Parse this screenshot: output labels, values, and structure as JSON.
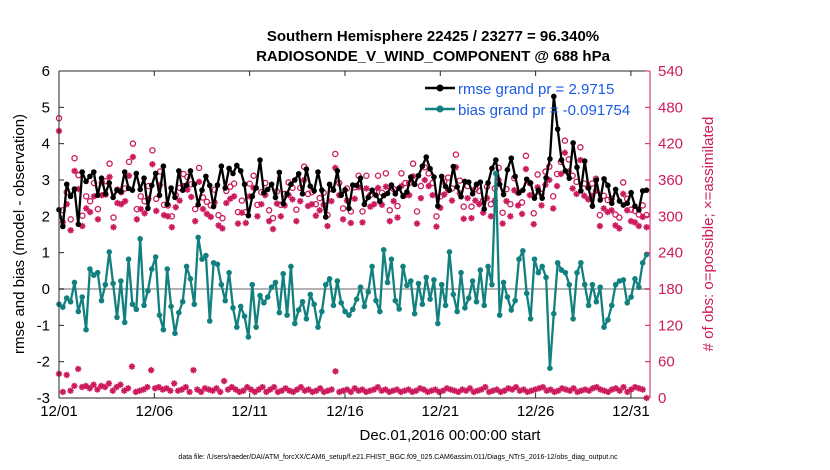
{
  "chart_data": {
    "type": "line",
    "title": "Southern Hemisphere 22425 / 23277 = 96.340%",
    "subtitle": "RADIOSONDE_V_WIND_COMPONENT @ 688 hPa",
    "xlabel": "Dec.01,2016 00:00:00 start",
    "ylabel_left": "rmse and bias (model - observation)",
    "ylabel_right": "# of obs: o=possible; ×=assimilated",
    "xlim": [
      1,
      32
    ],
    "ylim_left": [
      -3,
      6
    ],
    "ylim_right": [
      0,
      540
    ],
    "x_tick_values": [
      1,
      6,
      11,
      16,
      21,
      26,
      31
    ],
    "x_tick_labels": [
      "12/01",
      "12/06",
      "12/11",
      "12/16",
      "12/21",
      "12/26",
      "12/31"
    ],
    "y_left_ticks": [
      "-3",
      "-2",
      "-1",
      "0",
      "1",
      "2",
      "3",
      "4",
      "5",
      "6"
    ],
    "y_right_ticks": [
      "0",
      "60",
      "120",
      "180",
      "240",
      "300",
      "360",
      "420",
      "480",
      "540"
    ],
    "colors": {
      "rmse": "#000000",
      "bias": "#138080",
      "obs": "#cc1a5e",
      "zero_line": "#b3b3b3",
      "legend_text": "#1a5ce6"
    },
    "series": [
      {
        "name": "rmse",
        "legend": "rmse grand pr = 2.9715",
        "color": "#000000",
        "marker": "filled-circle",
        "values": [
          2.18,
          1.72,
          2.88,
          2.55,
          2.75,
          1.78,
          3.22,
          2.96,
          3.1,
          3.22,
          2.58,
          3.05,
          2.62,
          2.92,
          2.52,
          2.72,
          2.68,
          3.22,
          2.77,
          2.72,
          3.18,
          2.74,
          3.05,
          2.22,
          2.85,
          3.18,
          2.58,
          3.38,
          2.33,
          2.78,
          2.52,
          3.25,
          2.72,
          2.86,
          3.25,
          2.88,
          2.32,
          2.72,
          3.1,
          2.85,
          2.27,
          2.86,
          3.38,
          2.78,
          3.32,
          3.18,
          3.4,
          3.25,
          2.88,
          2.02,
          2.55,
          2.78,
          3.55,
          2.65,
          2.74,
          2.88,
          2.52,
          3.21,
          2.35,
          2.62,
          2.88,
          3.0,
          3.17,
          2.62,
          3.3,
          2.83,
          2.7,
          3.22,
          2.72,
          1.98,
          2.88,
          2.72,
          3.25,
          2.58,
          2.73,
          2.22,
          2.86,
          2.85,
          3.05,
          2.33,
          2.52,
          2.72,
          2.58,
          2.41,
          2.57,
          2.63,
          2.86,
          2.62,
          2.78,
          2.55,
          2.67,
          3.08,
          2.88,
          3.12,
          3.38,
          3.63,
          3.31,
          3.08,
          2.28,
          3.1,
          2.82,
          2.72,
          3.37,
          2.81,
          2.54,
          2.96,
          2.94,
          2.62,
          2.88,
          2.94,
          2.2,
          2.92,
          3.32,
          3.55,
          2.88,
          2.6,
          3.28,
          3.6,
          3.1,
          2.65,
          2.72,
          3.02,
          2.92,
          2.5,
          2.72,
          2.5,
          3.06,
          3.58,
          5.3,
          4.4,
          3.55,
          3.25,
          3.05,
          4.02,
          3.35,
          2.7,
          3.52,
          2.78,
          2.28,
          3.0,
          2.45,
          3.03,
          2.85,
          2.36,
          2.74,
          2.42,
          2.31,
          2.36,
          2.65,
          2.28,
          2.18,
          2.7,
          2.72
        ],
        "missing_from_day": 28.5,
        "missing_gap": [
          0,
          0
        ]
      },
      {
        "name": "bias",
        "legend": "bias grand pr = -0.091754",
        "color": "#138080",
        "marker": "filled-circle",
        "values": [
          -0.42,
          -0.5,
          -0.25,
          -0.35,
          0.18,
          -0.62,
          -0.22,
          -1.12,
          0.55,
          0.38,
          0.45,
          -0.32,
          0.12,
          1.02,
          0.15,
          -0.78,
          0.22,
          -0.92,
          0.82,
          -0.42,
          -0.56,
          1.38,
          -0.45,
          -0.05,
          0.55,
          0.88,
          -0.72,
          -1.12,
          0.55,
          -0.48,
          -1.22,
          -0.65,
          -0.35,
          0.62,
          0.28,
          -0.42,
          1.42,
          0.82,
          0.92,
          -0.88,
          0.72,
          0.68,
          0.12,
          -0.32,
          0.45,
          -0.52,
          -1.05,
          -0.48,
          -0.75,
          -1.32,
          0.12,
          -1.05,
          -0.18,
          -0.38,
          -0.22,
          0.05,
          0.18,
          -0.65,
          0.42,
          -0.72,
          0.62,
          -0.95,
          -0.58,
          -0.35,
          -0.82,
          -0.15,
          -0.42,
          -1.05,
          -0.62,
          0.12,
          0.28,
          -0.45,
          0.22,
          -0.38,
          -0.62,
          -0.72,
          -0.56,
          -0.28,
          0.05,
          -0.48,
          -0.08,
          0.62,
          -0.32,
          -0.62,
          1.08,
          0.18,
          0.82,
          -0.32,
          -0.55,
          0.62,
          0.1,
          0.22,
          -0.68,
          0.15,
          -0.42,
          0.32,
          -0.28,
          0.25,
          -0.95,
          0.12,
          -0.45,
          1.02,
          -0.15,
          -0.62,
          0.45,
          -0.52,
          -0.25,
          0.22,
          -0.35,
          0.52,
          -0.45,
          0.62,
          0.12,
          3.18,
          -0.72,
          0.18,
          -0.22,
          -0.58,
          -0.32,
          0.82,
          1.05,
          -0.12,
          -0.82,
          0.82,
          0.45,
          0.62,
          0.32,
          -2.18,
          -0.68,
          0.72,
          0.52,
          0.45,
          0.12,
          -0.82,
          0.45,
          0.72,
          0.12,
          -0.45,
          0.12,
          -0.35,
          0.05,
          -1.05,
          -0.85,
          -0.45,
          0.12,
          0.22,
          0.25,
          -0.38,
          -0.22,
          0.28,
          0.05,
          0.72,
          0.95
        ]
      },
      {
        "name": "obs_possible",
        "legend": "o=possible",
        "color": "#cc1a5e",
        "marker": "open-circle",
        "axis": "right",
        "values": [
          462,
          310,
          340,
          295,
          396,
          368,
          301,
          333,
          325,
          355,
          312,
          356,
          358,
          387,
          298,
          344,
          340,
          346,
          390,
          420,
          312,
          333,
          325,
          350,
          409,
          329,
          374,
          319,
          318,
          300,
          335,
          347,
          370,
          365,
          353,
          312,
          380,
          331,
          324,
          318,
          344,
          302,
          297,
          342,
          349,
          354,
          307,
          326,
          307,
          354,
          367,
          319,
          340,
          355,
          310,
          297,
          341,
          319,
          337,
          356,
          347,
          311,
          347,
          382,
          337,
          340,
          320,
          330,
          339,
          302,
          345,
          403,
          355,
          313,
          346,
          308,
          348,
          367,
          308,
          367,
          335,
          341,
          367,
          339,
          371,
          310,
          345,
          317,
          371,
          355,
          355,
          387,
          308,
          350,
          381,
          371,
          355,
          300,
          333,
          357,
          364,
          346,
          402,
          359,
          316,
          350,
          316,
          345,
          342,
          326,
          349,
          320,
          346,
          380,
          306,
          345,
          320,
          363,
          339,
          323,
          400,
          355,
          305,
          369,
          337,
          374,
          382,
          333,
          370,
          390,
          425,
          394,
          367,
          357,
          414,
          354,
          348,
          354,
          362,
          302,
          334,
          327,
          329,
          303,
          298,
          356,
          329,
          311,
          309,
          303,
          318,
          302
        ]
      },
      {
        "name": "obs_assimilated",
        "legend": "×=assimilated",
        "color": "#cc1a5e",
        "marker": "asterisk",
        "axis": "right",
        "values": [
          441,
          290,
          320,
          277,
          375,
          345,
          284,
          313,
          307,
          333,
          295,
          335,
          336,
          365,
          282,
          322,
          320,
          325,
          367,
          398,
          295,
          312,
          305,
          329,
          386,
          309,
          352,
          302,
          300,
          282,
          315,
          326,
          350,
          344,
          332,
          292,
          357,
          312,
          304,
          299,
          323,
          285,
          280,
          322,
          329,
          333,
          288,
          306,
          289,
          333,
          347,
          300,
          320,
          335,
          292,
          279,
          321,
          300,
          318,
          335,
          328,
          292,
          325,
          360,
          317,
          320,
          301,
          310,
          319,
          284,
          325,
          380,
          335,
          295,
          326,
          289,
          329,
          348,
          290,
          346,
          316,
          320,
          347,
          319,
          349,
          292,
          325,
          298,
          350,
          335,
          335,
          366,
          288,
          330,
          360,
          350,
          335,
          283,
          314,
          336,
          343,
          326,
          381,
          338,
          296,
          330,
          297,
          326,
          320,
          306,
          330,
          300,
          326,
          360,
          288,
          325,
          300,
          343,
          318,
          304,
          378,
          335,
          287,
          348,
          318,
          352,
          360,
          313,
          350,
          370,
          405,
          374,
          346,
          337,
          393,
          334,
          328,
          334,
          342,
          284,
          313,
          307,
          310,
          285,
          280,
          337,
          310,
          292,
          290,
          284,
          299,
          282
        ]
      },
      {
        "name": "obs_assimilated_low",
        "legend": "",
        "color": "#cc1a5e",
        "marker": "asterisk",
        "axis": "right",
        "values": [
          40,
          10,
          38,
          12,
          20,
          48,
          18,
          20,
          16,
          22,
          14,
          20,
          18,
          24,
          12,
          18,
          22,
          12,
          16,
          52,
          10,
          12,
          14,
          18,
          46,
          16,
          18,
          14,
          16,
          12,
          24,
          12,
          14,
          18,
          10,
          46,
          14,
          10,
          16,
          14,
          12,
          16,
          10,
          28,
          14,
          18,
          14,
          10,
          12,
          18,
          14,
          10,
          14,
          18,
          10,
          14,
          18,
          10,
          12,
          16,
          12,
          10,
          14,
          18,
          12,
          14,
          10,
          12,
          16,
          10,
          12,
          14,
          44,
          10,
          12,
          14,
          10,
          16,
          12,
          14,
          10,
          12,
          14,
          18,
          12,
          14,
          10,
          12,
          14,
          10,
          12,
          14,
          10,
          12,
          16,
          14,
          10,
          12,
          14,
          10,
          12,
          16,
          14,
          12,
          10,
          14,
          12,
          16,
          10,
          12,
          14,
          18,
          10,
          12,
          14,
          10,
          12,
          16,
          14,
          18,
          12,
          14,
          10,
          12,
          14,
          16,
          18,
          12,
          14,
          10,
          12,
          16,
          14,
          12,
          16,
          10,
          12,
          14,
          12,
          16,
          18,
          14,
          12,
          10,
          14,
          16,
          12,
          18,
          10,
          14,
          18,
          16,
          14,
          0
        ]
      }
    ]
  },
  "footnote": "data file: /Users/raeder/DAI/ATM_forcXX/CAM6_setup/f.e21.FHIST_BGC.f09_025.CAM6assim.011/Diags_NTrS_2016-12/obs_diag_output.nc"
}
